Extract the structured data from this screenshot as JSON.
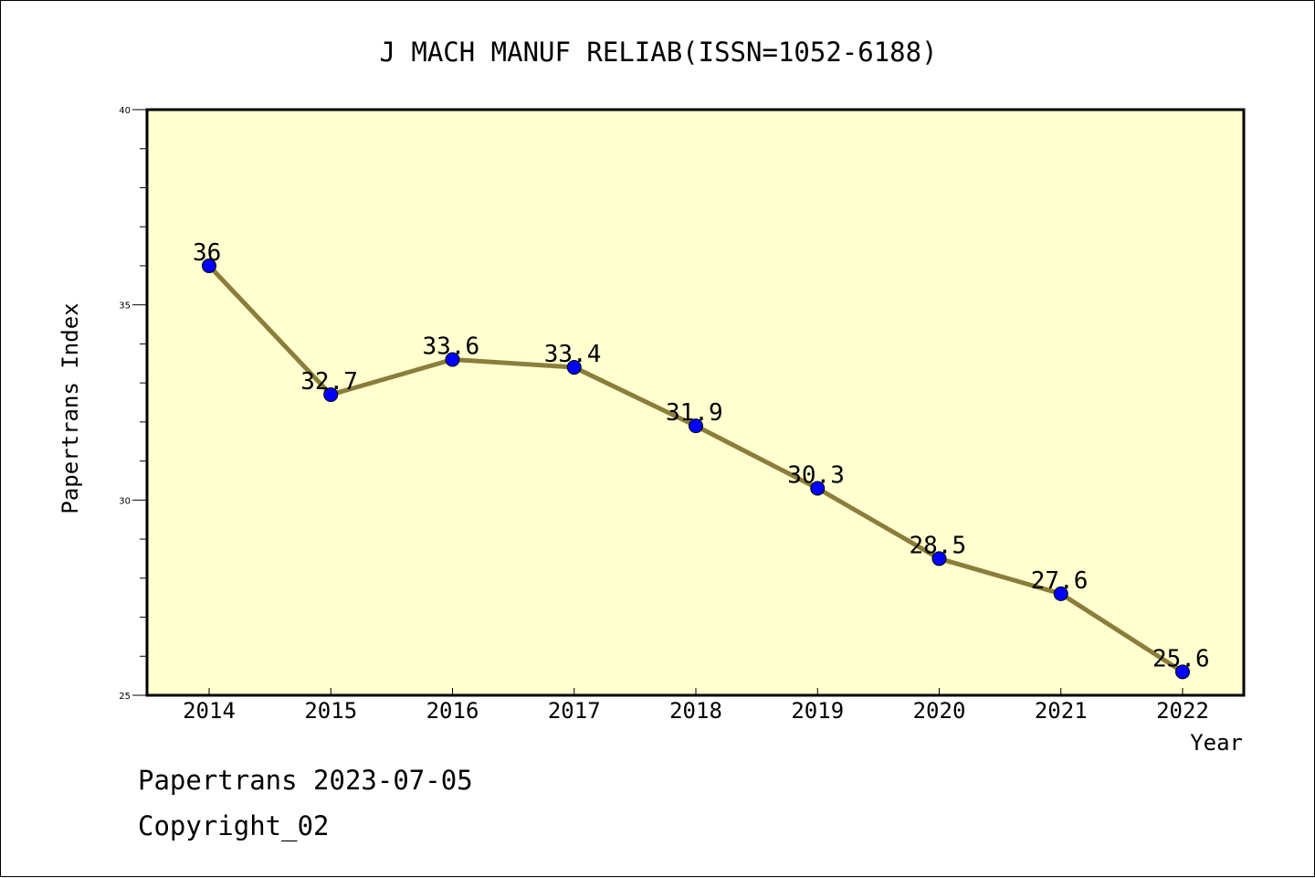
{
  "chart_data": {
    "type": "line",
    "title": "J MACH MANUF RELIAB(ISSN=1052-6188)",
    "xlabel": "Year",
    "ylabel": "Papertrans Index",
    "categories": [
      "2014",
      "2015",
      "2016",
      "2017",
      "2018",
      "2019",
      "2020",
      "2021",
      "2022"
    ],
    "series": [
      {
        "values": [
          36,
          32.7,
          33.6,
          33.4,
          31.9,
          30.3,
          28.5,
          27.6,
          25.6
        ],
        "labels": [
          "36",
          "32.7",
          "33.6",
          "33.4",
          "31.9",
          "30.3",
          "28.5",
          "27.6",
          "25.6"
        ]
      }
    ],
    "ylim": [
      25,
      40
    ],
    "yticks": [
      "25",
      "30",
      "35",
      "40"
    ],
    "grid": false,
    "legend": "none",
    "colors": {
      "plot_background": "#ffffd0",
      "line": "#8b7d3a",
      "marker": "#0000ff"
    }
  },
  "footer": {
    "line1": "Papertrans 2023-07-05",
    "line2": "Copyright_02"
  }
}
